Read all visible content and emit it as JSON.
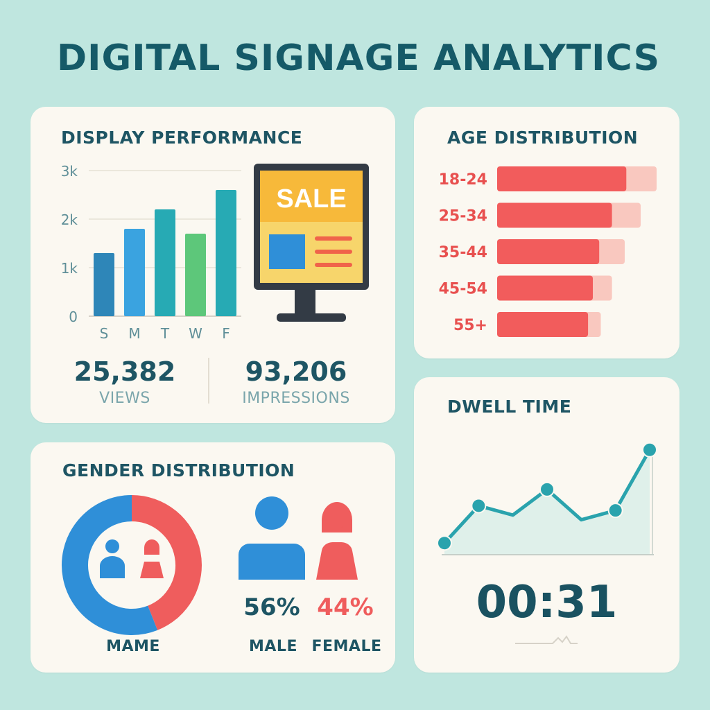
{
  "title": "DIGITAL SIGNAGE ANALYTICS",
  "colors": {
    "background": "#bfe6df",
    "card": "#fbf8f1",
    "heading": "#155a68",
    "male": "#2f8fd8",
    "female": "#ef5d5d",
    "age_bar": "#f25c5c",
    "age_track": "#f9c8bf",
    "dwell_line": "#2aa3ad"
  },
  "display_performance": {
    "title": "DISPLAY PERFORMANCE",
    "views_value": "25,382",
    "views_label": "VIEWS",
    "impressions_value": "93,206",
    "impressions_label": "IMPRESSIONS",
    "screen_text": "SALE"
  },
  "age_distribution": {
    "title": "AGE DISTRIBUTION"
  },
  "gender_distribution": {
    "title": "GENDER DISTRIBUTION",
    "donut_label": "MAME",
    "male_pct": "56%",
    "male_label": "MALE",
    "female_pct": "44%",
    "female_label": "FEMALE"
  },
  "dwell_time": {
    "title": "DWELL TIME",
    "value": "00:31"
  },
  "chart_data": [
    {
      "type": "bar",
      "categories": [
        "S",
        "M",
        "T",
        "W",
        "F"
      ],
      "values": [
        1.3,
        1.8,
        2.2,
        1.7,
        2.6
      ],
      "colors": [
        "#2e86b8",
        "#3aa3e0",
        "#27aab4",
        "#5dc77a",
        "#27aab4"
      ],
      "yticks": [
        "0",
        "1k",
        "2k",
        "3k"
      ],
      "ylim": [
        0,
        3
      ],
      "grid": true
    },
    {
      "type": "bar",
      "orientation": "horizontal",
      "categories": [
        "18-24",
        "25-34",
        "35-44",
        "45-54",
        "55+"
      ],
      "values": [
        0.81,
        0.72,
        0.64,
        0.6,
        0.57
      ],
      "track": [
        1.0,
        0.9,
        0.8,
        0.72,
        0.65
      ]
    },
    {
      "type": "pie",
      "categories": [
        "Male",
        "Female"
      ],
      "values": [
        56,
        44
      ],
      "colors": [
        "#2f8fd8",
        "#ef5d5d"
      ]
    },
    {
      "type": "area",
      "x": [
        1,
        2,
        3,
        4,
        5,
        6,
        7
      ],
      "values": [
        0.1,
        0.42,
        0.34,
        0.56,
        0.3,
        0.38,
        0.9
      ],
      "markers": [
        1,
        2,
        4,
        6,
        7
      ],
      "ylim": [
        0,
        1
      ]
    }
  ]
}
